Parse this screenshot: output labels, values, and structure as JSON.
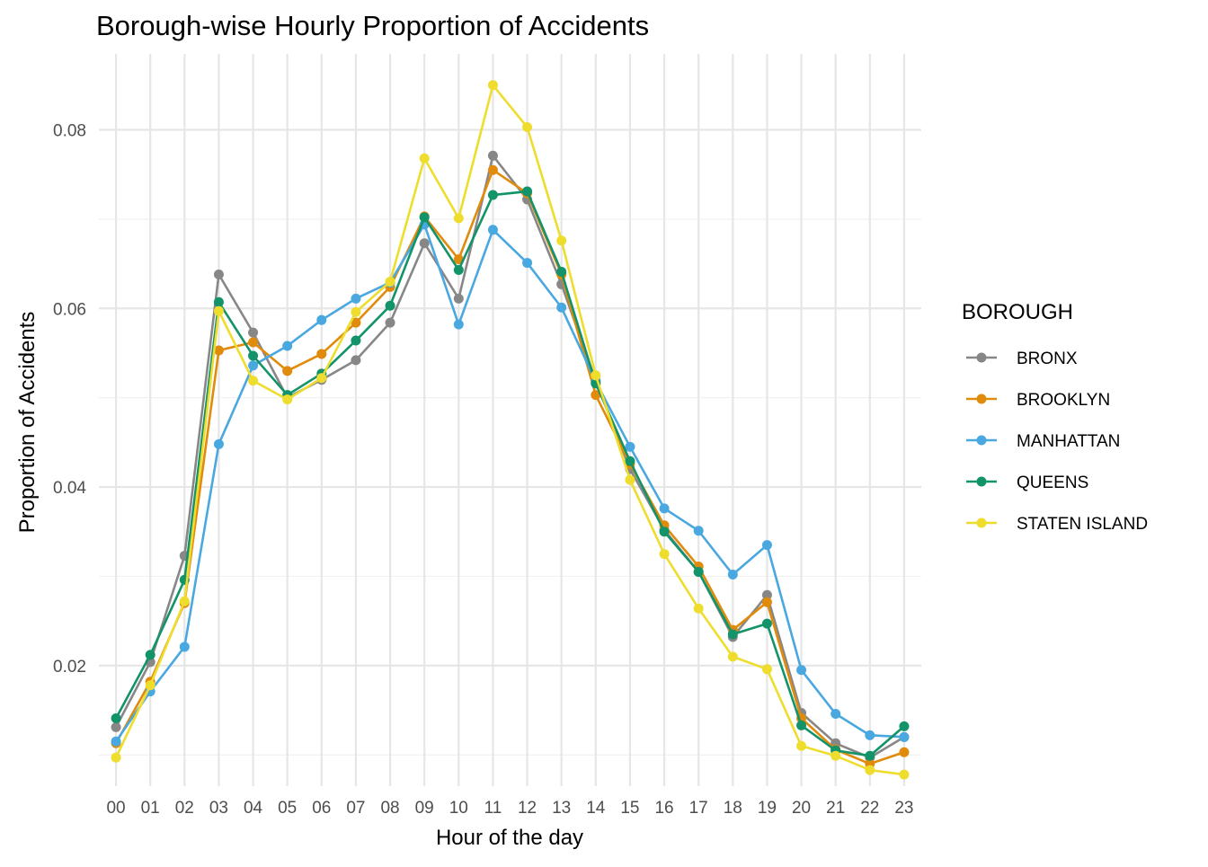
{
  "chart_data": {
    "type": "line",
    "title": "Borough-wise Hourly Proportion of Accidents",
    "xlabel": "Hour of the day",
    "ylabel": "Proportion of Accidents",
    "categories": [
      "00",
      "01",
      "02",
      "03",
      "04",
      "05",
      "06",
      "07",
      "08",
      "09",
      "10",
      "11",
      "12",
      "13",
      "14",
      "15",
      "16",
      "17",
      "18",
      "19",
      "20",
      "21",
      "22",
      "23"
    ],
    "ylim": [
      0.0065,
      0.0885
    ],
    "yticks": [
      "0.02",
      "0.04",
      "0.06",
      "0.08"
    ],
    "grid": true,
    "legend": {
      "title": "BOROUGH",
      "position": "right"
    },
    "series": [
      {
        "name": "BRONX",
        "color": "#878787",
        "values": [
          0.0131,
          0.0204,
          0.0323,
          0.0638,
          0.0573,
          0.05,
          0.052,
          0.0542,
          0.0584,
          0.0673,
          0.0611,
          0.0771,
          0.0722,
          0.0627,
          0.0519,
          0.042,
          0.0352,
          0.0305,
          0.0232,
          0.0279,
          0.0147,
          0.0113,
          0.0097,
          0.012
        ]
      },
      {
        "name": "BROOKLYN",
        "color": "#E08B0C",
        "values": [
          0.0113,
          0.0182,
          0.027,
          0.0553,
          0.0562,
          0.053,
          0.0549,
          0.0584,
          0.0624,
          0.0703,
          0.0655,
          0.0755,
          0.0729,
          0.0638,
          0.0503,
          0.0426,
          0.0357,
          0.0311,
          0.024,
          0.0271,
          0.0141,
          0.0106,
          0.009,
          0.0103
        ]
      },
      {
        "name": "MANHATTAN",
        "color": "#4AA8E0",
        "values": [
          0.0115,
          0.0171,
          0.0221,
          0.0448,
          0.0536,
          0.0558,
          0.0587,
          0.0611,
          0.0629,
          0.0694,
          0.0582,
          0.0688,
          0.0651,
          0.0601,
          0.0518,
          0.0445,
          0.0376,
          0.0351,
          0.0302,
          0.0335,
          0.0195,
          0.0146,
          0.0122,
          0.012
        ]
      },
      {
        "name": "QUEENS",
        "color": "#12936A",
        "values": [
          0.0141,
          0.0212,
          0.0296,
          0.0607,
          0.0547,
          0.0503,
          0.0527,
          0.0564,
          0.0603,
          0.0702,
          0.0643,
          0.0727,
          0.0731,
          0.0641,
          0.0516,
          0.0429,
          0.035,
          0.0305,
          0.0235,
          0.0247,
          0.0133,
          0.0105,
          0.0099,
          0.0132
        ]
      },
      {
        "name": "STATEN ISLAND",
        "color": "#EEDD2D",
        "values": [
          0.0097,
          0.0178,
          0.0272,
          0.0597,
          0.0519,
          0.0498,
          0.0522,
          0.0596,
          0.063,
          0.0768,
          0.0701,
          0.085,
          0.0803,
          0.0676,
          0.0525,
          0.0408,
          0.0325,
          0.0264,
          0.021,
          0.0196,
          0.011,
          0.0099,
          0.0083,
          0.0078
        ]
      }
    ]
  }
}
